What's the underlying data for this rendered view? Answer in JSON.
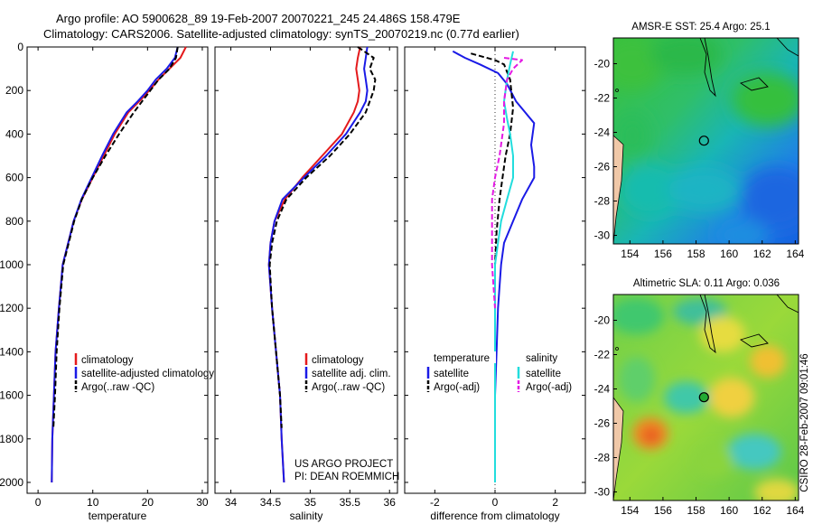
{
  "title": {
    "line1": "Argo profile: AO 5900628_89 19-Feb-2007 20070221_245 24.486S 158.479E",
    "line2": "Climatology: CARS2006. Satellite-adjusted climatology: synTS_20070219.nc (0.77d earlier)"
  },
  "side_text": "CSIRO 28-Feb-2007 09:01:46",
  "colors": {
    "climatology": "#e41a1c",
    "satellite": "#1a1ae6",
    "argo": "#000000",
    "sal_satellite": "#22dddd",
    "sal_argo": "#e41ae4",
    "land": "#f0c8a8"
  },
  "chart_data": [
    {
      "id": "temperature",
      "type": "line",
      "xlabel": "temperature",
      "ylabel": "",
      "xlim": [
        -2,
        31
      ],
      "ylim": [
        0,
        2050
      ],
      "y_reversed": true,
      "xticks": [
        0,
        10,
        20,
        30
      ],
      "yticks": [
        0,
        200,
        400,
        600,
        800,
        1000,
        1200,
        1400,
        1600,
        1800,
        2000
      ],
      "legend": {
        "position": "lower-right",
        "entries": [
          "climatology",
          "satellite-adjusted climatology",
          "Argo(..raw -QC)"
        ]
      },
      "series": [
        {
          "name": "climatology",
          "color_key": "climatology",
          "dash": false,
          "x": [
            27.0,
            26.0,
            24.0,
            22.0,
            20.3,
            18.5,
            16.5,
            14.0,
            12.0,
            10.0,
            8.0,
            6.5,
            5.5,
            4.5,
            3.8,
            3.2,
            2.9,
            2.6,
            2.5
          ],
          "y": [
            0,
            50,
            100,
            150,
            200,
            250,
            300,
            400,
            500,
            600,
            700,
            800,
            900,
            1000,
            1200,
            1400,
            1600,
            1800,
            2000
          ]
        },
        {
          "name": "satellite-adjusted climatology",
          "color_key": "satellite",
          "dash": false,
          "x": [
            25.5,
            25.0,
            23.5,
            21.5,
            20.0,
            18.2,
            16.2,
            13.7,
            11.7,
            9.8,
            7.9,
            6.5,
            5.5,
            4.5,
            3.8,
            3.2,
            2.9,
            2.6,
            2.5
          ],
          "y": [
            0,
            50,
            100,
            150,
            200,
            250,
            300,
            400,
            500,
            600,
            700,
            800,
            900,
            1000,
            1200,
            1400,
            1600,
            1800,
            2000
          ]
        },
        {
          "name": "Argo(..raw -QC)",
          "color_key": "argo",
          "dash": true,
          "x": [
            25.5,
            25.2,
            24.0,
            22.0,
            20.5,
            19.0,
            17.5,
            14.8,
            12.3,
            10.0,
            8.0,
            6.6,
            5.6,
            4.6,
            3.9,
            3.4,
            3.1,
            2.8
          ],
          "y": [
            0,
            50,
            100,
            150,
            200,
            250,
            300,
            400,
            500,
            600,
            700,
            800,
            900,
            1000,
            1200,
            1400,
            1600,
            1750
          ]
        }
      ]
    },
    {
      "id": "salinity",
      "type": "line",
      "xlabel": "salinity",
      "ylabel": "",
      "xlim": [
        33.8,
        36.1
      ],
      "ylim": [
        0,
        2050
      ],
      "y_reversed": true,
      "xticks": [
        34,
        34.5,
        35,
        35.5,
        36
      ],
      "yticks": [
        0,
        200,
        400,
        600,
        800,
        1000,
        1200,
        1400,
        1600,
        1800,
        2000
      ],
      "legend": {
        "position": "lower-right",
        "entries": [
          "climatology",
          "satellite adj. clim.",
          "Argo(..raw -QC)"
        ]
      },
      "annotation": [
        "US ARGO PROJECT",
        "PI: DEAN ROEMMICH"
      ],
      "series": [
        {
          "name": "climatology",
          "color_key": "climatology",
          "dash": false,
          "x": [
            35.63,
            35.6,
            35.58,
            35.6,
            35.62,
            35.6,
            35.55,
            35.4,
            35.15,
            34.9,
            34.68,
            34.55,
            34.5,
            34.48,
            34.52,
            34.57,
            34.62,
            34.64,
            34.67
          ],
          "y": [
            0,
            50,
            100,
            150,
            200,
            250,
            300,
            400,
            500,
            600,
            700,
            800,
            900,
            1000,
            1200,
            1400,
            1600,
            1800,
            2000
          ]
        },
        {
          "name": "satellite adj. clim.",
          "color_key": "satellite",
          "dash": false,
          "x": [
            35.72,
            35.7,
            35.68,
            35.7,
            35.72,
            35.7,
            35.63,
            35.45,
            35.2,
            34.92,
            34.65,
            34.55,
            34.5,
            34.48,
            34.52,
            34.57,
            34.62,
            34.64,
            34.67
          ],
          "y": [
            0,
            50,
            100,
            150,
            200,
            250,
            300,
            400,
            500,
            600,
            700,
            800,
            900,
            1000,
            1200,
            1400,
            1600,
            1800,
            2000
          ]
        },
        {
          "name": "Argo(..raw -QC)",
          "color_key": "argo",
          "dash": true,
          "x": [
            35.6,
            35.8,
            35.75,
            35.82,
            35.8,
            35.75,
            35.7,
            35.5,
            35.25,
            34.95,
            34.7,
            34.58,
            34.52,
            34.49,
            34.52,
            34.57,
            34.62,
            34.64
          ],
          "y": [
            0,
            50,
            100,
            150,
            200,
            250,
            300,
            400,
            500,
            600,
            700,
            800,
            900,
            1000,
            1200,
            1400,
            1600,
            1750
          ]
        }
      ]
    },
    {
      "id": "difference",
      "type": "line",
      "xlabel": "difference from climatology",
      "ylabel": "",
      "xlim": [
        -3,
        3
      ],
      "ylim": [
        0,
        2050
      ],
      "y_reversed": true,
      "xticks": [
        -2,
        0,
        2
      ],
      "yticks": [
        0,
        200,
        400,
        600,
        800,
        1000,
        1200,
        1400,
        1600,
        1800,
        2000
      ],
      "legend": {
        "position": "center",
        "headers": [
          "temperature",
          "salinity"
        ],
        "entries": [
          "satellite",
          "Argo(-adj)",
          "satellite",
          "Argo(-adj)"
        ]
      },
      "series": [
        {
          "name": "temperature satellite",
          "color_key": "satellite",
          "dash": false,
          "x": [
            -1.4,
            -1.0,
            -0.5,
            0.1,
            0.4,
            0.7,
            1.0,
            1.3,
            1.2,
            1.3,
            1.3,
            0.9,
            0.6,
            0.3,
            0.2,
            0.1,
            0.05,
            0.0,
            0.0,
            0.0
          ],
          "y": [
            20,
            50,
            80,
            120,
            170,
            250,
            300,
            350,
            450,
            550,
            600,
            700,
            800,
            900,
            1000,
            1200,
            1400,
            1600,
            1800,
            2000
          ]
        },
        {
          "name": "temperature Argo(-adj)",
          "color_key": "argo",
          "dash": true,
          "x": [
            -0.8,
            0.0,
            0.3,
            0.5,
            0.6,
            0.5,
            0.35,
            0.25,
            0.15,
            0.05,
            0.0,
            0.0,
            0.0
          ],
          "y": [
            30,
            60,
            80,
            150,
            280,
            400,
            500,
            600,
            700,
            850,
            1000,
            1300,
            1600
          ]
        },
        {
          "name": "salinity satellite",
          "color_key": "sal_satellite",
          "dash": false,
          "x": [
            0.6,
            0.5,
            0.4,
            0.3,
            0.4,
            0.5,
            0.6,
            0.6,
            0.4,
            0.2,
            0.1,
            0.0,
            0.0,
            0.0,
            0.0
          ],
          "y": [
            20,
            80,
            150,
            250,
            330,
            400,
            500,
            600,
            700,
            800,
            900,
            1000,
            1200,
            1600,
            2000
          ]
        },
        {
          "name": "salinity Argo(-adj)",
          "color_key": "sal_argo",
          "dash": true,
          "x": [
            0.3,
            0.9,
            0.6,
            0.4,
            0.3,
            0.3,
            0.15,
            0.0,
            -0.1,
            -0.1,
            -0.1,
            0.0
          ],
          "y": [
            50,
            60,
            100,
            150,
            250,
            350,
            500,
            600,
            700,
            800,
            1000,
            1200
          ]
        }
      ]
    },
    {
      "id": "sst-map",
      "type": "heatmap",
      "title": "AMSR-E SST: 25.4 Argo: 25.1",
      "xticks": [
        154,
        156,
        158,
        160,
        162,
        164
      ],
      "yticks": [
        -20,
        -22,
        -24,
        -26,
        -28,
        -30
      ],
      "xlim": [
        153,
        164.2
      ],
      "ylim": [
        -30.5,
        -18.5
      ],
      "float_position": {
        "lon": 158.479,
        "lat": -24.486
      }
    },
    {
      "id": "sla-map",
      "type": "heatmap",
      "title": "Altimetric SLA: 0.11 Argo: 0.036",
      "xticks": [
        154,
        156,
        158,
        160,
        162,
        164
      ],
      "yticks": [
        -20,
        -22,
        -24,
        -26,
        -28,
        -30
      ],
      "xlim": [
        153,
        164.2
      ],
      "ylim": [
        -30.5,
        -18.5
      ],
      "float_position": {
        "lon": 158.479,
        "lat": -24.486
      }
    }
  ]
}
